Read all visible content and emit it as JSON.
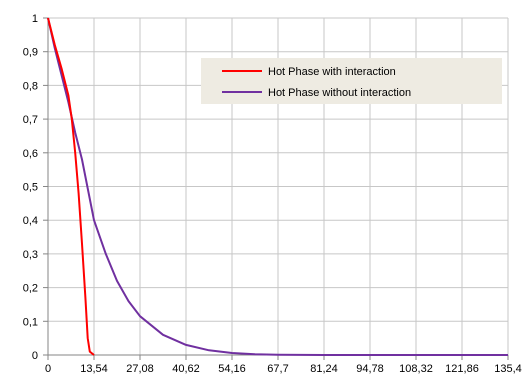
{
  "chart_data": {
    "type": "line",
    "title": "",
    "xlabel": "",
    "ylabel": "",
    "xlim": [
      0,
      135.4
    ],
    "ylim": [
      0,
      1
    ],
    "grid": true,
    "legend_placement": "top-right",
    "x_ticks": [
      "0",
      "13,54",
      "27,08",
      "40,62",
      "54,16",
      "67,7",
      "81,24",
      "94,78",
      "108,32",
      "121,86",
      "135,4"
    ],
    "y_ticks": [
      "0",
      "0,1",
      "0,2",
      "0,3",
      "0,4",
      "0,5",
      "0,6",
      "0,7",
      "0,8",
      "0,9",
      "1"
    ],
    "series": [
      {
        "name": "Hot Phase with interaction",
        "color": "#ff0000",
        "points": [
          [
            0,
            1.0
          ],
          [
            2,
            0.92
          ],
          [
            4,
            0.85
          ],
          [
            6,
            0.77
          ],
          [
            7,
            0.7
          ],
          [
            8,
            0.6
          ],
          [
            9,
            0.48
          ],
          [
            10,
            0.33
          ],
          [
            11,
            0.17
          ],
          [
            11.7,
            0.05
          ],
          [
            12.3,
            0.01
          ],
          [
            13.54,
            0.0
          ]
        ]
      },
      {
        "name": "Hot Phase without interaction",
        "color": "#7030a0",
        "points": [
          [
            0,
            1.0
          ],
          [
            2,
            0.91
          ],
          [
            4,
            0.83
          ],
          [
            6,
            0.75
          ],
          [
            8,
            0.66
          ],
          [
            10,
            0.58
          ],
          [
            13.54,
            0.4
          ],
          [
            17,
            0.3
          ],
          [
            20.31,
            0.22
          ],
          [
            23.7,
            0.16
          ],
          [
            27.08,
            0.115
          ],
          [
            33.85,
            0.06
          ],
          [
            40.62,
            0.03
          ],
          [
            47.39,
            0.014
          ],
          [
            54.16,
            0.006
          ],
          [
            60.93,
            0.002
          ],
          [
            67.7,
            0.001
          ],
          [
            81.24,
            0.0
          ],
          [
            94.78,
            0.0
          ],
          [
            108.32,
            0.0
          ],
          [
            121.86,
            0.0
          ],
          [
            135.4,
            0.0
          ]
        ]
      }
    ]
  }
}
